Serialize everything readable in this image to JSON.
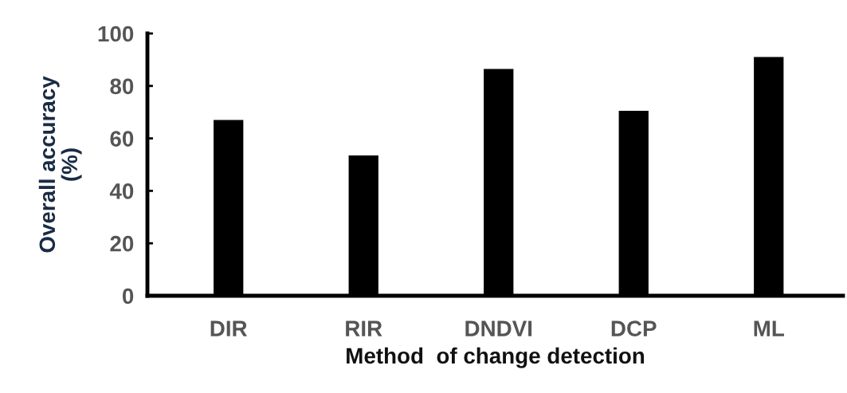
{
  "chart_data": {
    "type": "bar",
    "xlabel": "Method  of change detection",
    "ylabel": "Overall accuracy\n(%)",
    "categories": [
      "DIR",
      "RIR",
      "DNDVI",
      "DCP",
      "ML"
    ],
    "values": [
      67,
      53.5,
      86.5,
      70.5,
      91
    ],
    "color": "#000000",
    "ylim": [
      0,
      100
    ],
    "yticks": [
      0,
      20,
      40,
      60,
      80,
      100
    ],
    "grid": false,
    "legend": false
  }
}
